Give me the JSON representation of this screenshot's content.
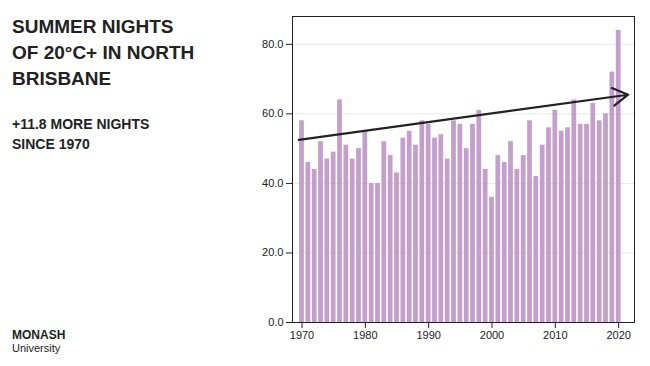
{
  "chart_data": {
    "type": "bar",
    "title": "SUMMER NIGHTS\nOF 20°C+ IN NORTH\nBRISBANE",
    "subtitle": "+11.8 MORE NIGHTS\nSINCE 1970",
    "annotations": [
      "MONASH",
      "University"
    ],
    "x": [
      1970,
      1971,
      1972,
      1973,
      1974,
      1975,
      1976,
      1977,
      1978,
      1979,
      1980,
      1981,
      1982,
      1983,
      1984,
      1985,
      1986,
      1987,
      1988,
      1989,
      1990,
      1991,
      1992,
      1993,
      1994,
      1995,
      1996,
      1997,
      1998,
      1999,
      2000,
      2001,
      2002,
      2003,
      2004,
      2005,
      2006,
      2007,
      2008,
      2009,
      2010,
      2011,
      2012,
      2013,
      2014,
      2015,
      2016,
      2017,
      2018,
      2019,
      2020
    ],
    "values": [
      58,
      46,
      44,
      52,
      47,
      49,
      64,
      51,
      47,
      50,
      55,
      40,
      40,
      52,
      48,
      43,
      53,
      55,
      51,
      58,
      57,
      53,
      54,
      47,
      58,
      57,
      50,
      57,
      61,
      44,
      36,
      48,
      46,
      52,
      44,
      48,
      58,
      42,
      51,
      56,
      61,
      55,
      56,
      64,
      57,
      57,
      63,
      58,
      60,
      72,
      84
    ],
    "color": "#C49FCC",
    "xlim": [
      1968.5,
      2022.5
    ],
    "xticks": [
      1970,
      1980,
      1990,
      2000,
      2010,
      2020
    ],
    "ylim": [
      0,
      88
    ],
    "yticks": [
      {
        "value": 0,
        "label": "0.0"
      },
      {
        "value": 20,
        "label": "20.0"
      },
      {
        "value": 40,
        "label": "40.0"
      },
      {
        "value": 60,
        "label": "60.0"
      },
      {
        "value": 80,
        "label": "80.0"
      }
    ],
    "grid": true,
    "trend_arrow": {
      "x": [
        1969.5,
        2021.5
      ],
      "y": [
        52.5,
        65.5
      ]
    }
  }
}
